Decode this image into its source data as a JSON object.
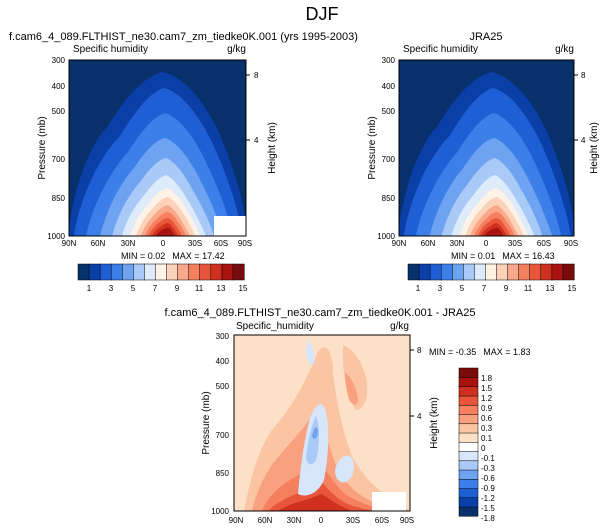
{
  "page": {
    "title": "DJF"
  },
  "colors": {
    "abs_levels": [
      "#08306b",
      "#0b3fa8",
      "#1f5fd6",
      "#3d7fe8",
      "#6ea3f2",
      "#a9c9f7",
      "#deebfa",
      "#fff2e6",
      "#fcd2b8",
      "#f9a98a",
      "#f57f5f",
      "#e8553b",
      "#d0301f",
      "#a8130f",
      "#7a0b0b"
    ],
    "diff_levels": [
      "#08306b",
      "#0b3fa8",
      "#1f5fd6",
      "#3d7fe8",
      "#6ea3f2",
      "#a9c9f7",
      "#d7e6fa",
      "#ffffff",
      "#fde0c8",
      "#fbc4a2",
      "#f9a07f",
      "#f57f5f",
      "#e8553b",
      "#d0301f",
      "#a8130f",
      "#7a0b0b"
    ]
  },
  "chart_data": [
    {
      "type": "heatmap",
      "panel": "model",
      "title": "f.cam6_4_089.FLTHIST_ne30.cam7_zm_tiedke0K.001 (yrs 1995-2003)",
      "variable": "Specific humidity",
      "units": "g/kg",
      "xlabel": "",
      "ylabel": "Pressure (mb)",
      "ylabel_right": "Height (km)",
      "x_ticks": [
        "90N",
        "60N",
        "30N",
        "0",
        "30S",
        "60S",
        "90S"
      ],
      "y_ticks": [
        "300",
        "400",
        "500",
        "700",
        "850",
        "1000"
      ],
      "y_ticks_right": [
        "8",
        "4"
      ],
      "ylim": [
        1000,
        300
      ],
      "min_label": "MIN = ",
      "min": "0.02",
      "max_label": "MAX = ",
      "max": "17.42",
      "colorbar_labels": [
        "1",
        "3",
        "5",
        "7",
        "9",
        "11",
        "13",
        "15"
      ]
    },
    {
      "type": "heatmap",
      "panel": "obs",
      "title": "JRA25",
      "variable": "Specific humidity",
      "units": "g/kg",
      "xlabel": "",
      "ylabel": "Pressure (mb)",
      "ylabel_right": "Height (km)",
      "x_ticks": [
        "90N",
        "60N",
        "30N",
        "0",
        "30S",
        "60S",
        "90S"
      ],
      "y_ticks": [
        "300",
        "400",
        "500",
        "700",
        "850",
        "1000"
      ],
      "y_ticks_right": [
        "8",
        "4"
      ],
      "ylim": [
        1000,
        300
      ],
      "min_label": "MIN = ",
      "min": "0.01",
      "max_label": "MAX = ",
      "max": "16.43",
      "colorbar_labels": [
        "1",
        "3",
        "5",
        "7",
        "9",
        "11",
        "13",
        "15"
      ]
    },
    {
      "type": "heatmap",
      "panel": "diff",
      "title": "f.cam6_4_089.FLTHIST_ne30.cam7_zm_tiedke0K.001 - JRA25",
      "variable": "Specific_humidity",
      "units": "g/kg",
      "xlabel": "",
      "ylabel": "Pressure (mb)",
      "ylabel_right": "Height (km)",
      "x_ticks": [
        "90N",
        "60N",
        "30N",
        "0",
        "30S",
        "60S",
        "90S"
      ],
      "y_ticks": [
        "300",
        "400",
        "500",
        "700",
        "850",
        "1000"
      ],
      "y_ticks_right": [
        "8",
        "4"
      ],
      "ylim": [
        1000,
        300
      ],
      "min_label": "MIN = ",
      "min": "-0.35",
      "max_label": "MAX = ",
      "max": "1.83",
      "colorbar_labels": [
        "1.8",
        "1.5",
        "1.2",
        "0.9",
        "0.6",
        "0.3",
        "0.1",
        "0",
        "-0.1",
        "-0.3",
        "-0.6",
        "-0.9",
        "-1.2",
        "-1.5",
        "-1.8"
      ]
    }
  ]
}
